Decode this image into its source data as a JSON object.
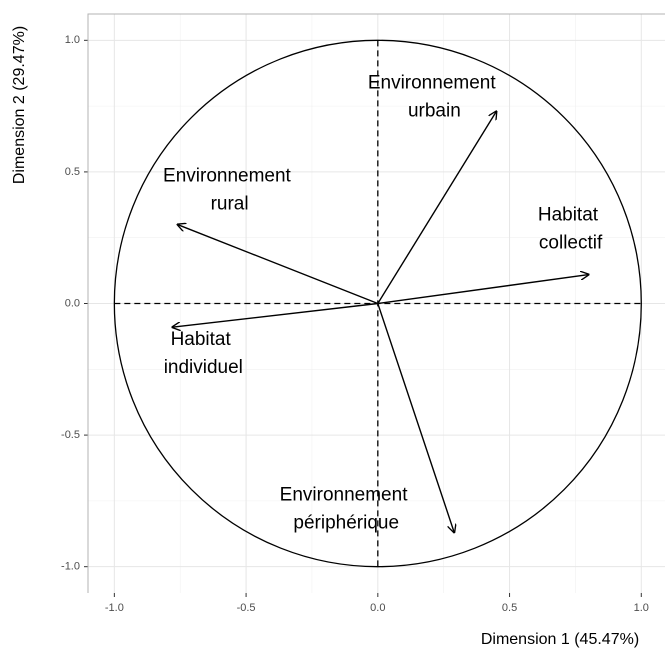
{
  "chart_data": {
    "type": "vector",
    "xlabel": "Dimension 1 (45.47%)",
    "ylabel": "Dimension 2 (29.47%)",
    "points": [
      {
        "name": "Environnement urbain",
        "x": 0.45,
        "y": 0.73
      },
      {
        "name": "Environnement rural",
        "x": -0.76,
        "y": 0.3
      },
      {
        "name": "Habitat collectif",
        "x": 0.8,
        "y": 0.11
      },
      {
        "name": "Habitat individuel",
        "x": -0.78,
        "y": -0.09
      },
      {
        "name": "Environnement périphérique",
        "x": 0.29,
        "y": -0.87
      }
    ],
    "color": "#000000",
    "xlim": [
      -1.1,
      1.09
    ],
    "ylim": [
      -1.1,
      1.1
    ],
    "xticks": [
      {
        "value": -1,
        "label": "-1.0"
      },
      -0.5,
      {
        "value": 0,
        "label": "0.0"
      },
      0.5,
      {
        "value": 1,
        "label": "1.0"
      }
    ],
    "yticks": [
      {
        "value": -1,
        "label": "-1.0"
      },
      -0.5,
      {
        "value": 0,
        "label": "0.0"
      },
      0.5,
      {
        "value": 1,
        "label": "1.0"
      }
    ],
    "grid": true
  }
}
